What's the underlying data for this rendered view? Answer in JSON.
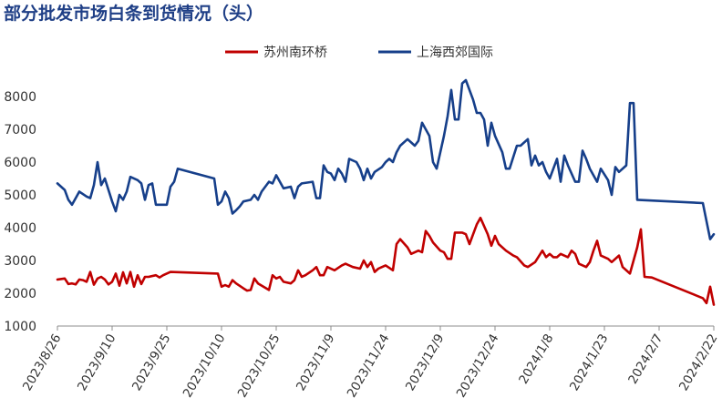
{
  "title": "部分批发市场白条到货情况（头）",
  "chart_data": {
    "type": "line",
    "title": "部分批发市场白条到货情况（头）",
    "xlabel": "",
    "ylabel": "",
    "ylim": [
      1000,
      8500
    ],
    "yticks": [
      1000,
      2000,
      3000,
      4000,
      5000,
      6000,
      7000,
      8000
    ],
    "x_range": [
      "2023-08-26",
      "2024-02-22"
    ],
    "x_tick_labels": [
      "2023/8/26",
      "2023/9/10",
      "2023/9/25",
      "2023/10/10",
      "2023/10/25",
      "2023/11/9",
      "2023/11/24",
      "2023/12/9",
      "2023/12/24",
      "2024/1/8",
      "2024/1/23",
      "2024/2/7",
      "2024/2/22"
    ],
    "x_tick_dates": [
      "2023-08-26",
      "2023-09-10",
      "2023-09-25",
      "2023-10-10",
      "2023-10-25",
      "2023-11-09",
      "2023-11-24",
      "2023-12-09",
      "2023-12-24",
      "2024-01-08",
      "2024-01-23",
      "2024-02-07",
      "2024-02-22"
    ],
    "grid": false,
    "legend_position": "top-right",
    "series": [
      {
        "name": "苏州南环桥",
        "color": "#c00000",
        "points": [
          [
            "2023-08-26",
            2420
          ],
          [
            "2023-08-28",
            2450
          ],
          [
            "2023-08-29",
            2280
          ],
          [
            "2023-08-30",
            2300
          ],
          [
            "2023-08-31",
            2270
          ],
          [
            "2023-09-01",
            2420
          ],
          [
            "2023-09-02",
            2400
          ],
          [
            "2023-09-03",
            2350
          ],
          [
            "2023-09-04",
            2650
          ],
          [
            "2023-09-05",
            2260
          ],
          [
            "2023-09-06",
            2450
          ],
          [
            "2023-09-07",
            2500
          ],
          [
            "2023-09-08",
            2420
          ],
          [
            "2023-09-09",
            2270
          ],
          [
            "2023-09-10",
            2350
          ],
          [
            "2023-09-11",
            2600
          ],
          [
            "2023-09-12",
            2230
          ],
          [
            "2023-09-13",
            2640
          ],
          [
            "2023-09-14",
            2300
          ],
          [
            "2023-09-15",
            2650
          ],
          [
            "2023-09-16",
            2200
          ],
          [
            "2023-09-17",
            2550
          ],
          [
            "2023-09-18",
            2280
          ],
          [
            "2023-09-19",
            2500
          ],
          [
            "2023-09-20",
            2500
          ],
          [
            "2023-09-22",
            2550
          ],
          [
            "2023-09-23",
            2480
          ],
          [
            "2023-09-24",
            2550
          ],
          [
            "2023-09-26",
            2650
          ],
          [
            "2023-10-09",
            2600
          ],
          [
            "2023-10-10",
            2200
          ],
          [
            "2023-10-11",
            2250
          ],
          [
            "2023-10-12",
            2200
          ],
          [
            "2023-10-13",
            2400
          ],
          [
            "2023-10-14",
            2300
          ],
          [
            "2023-10-16",
            2150
          ],
          [
            "2023-10-17",
            2080
          ],
          [
            "2023-10-18",
            2100
          ],
          [
            "2023-10-19",
            2450
          ],
          [
            "2023-10-20",
            2300
          ],
          [
            "2023-10-23",
            2100
          ],
          [
            "2023-10-24",
            2550
          ],
          [
            "2023-10-25",
            2450
          ],
          [
            "2023-10-26",
            2500
          ],
          [
            "2023-10-27",
            2350
          ],
          [
            "2023-10-29",
            2300
          ],
          [
            "2023-10-30",
            2400
          ],
          [
            "2023-10-31",
            2700
          ],
          [
            "2023-11-01",
            2500
          ],
          [
            "2023-11-02",
            2550
          ],
          [
            "2023-11-04",
            2700
          ],
          [
            "2023-11-05",
            2800
          ],
          [
            "2023-11-06",
            2550
          ],
          [
            "2023-11-07",
            2550
          ],
          [
            "2023-11-08",
            2800
          ],
          [
            "2023-11-10",
            2700
          ],
          [
            "2023-11-12",
            2850
          ],
          [
            "2023-11-13",
            2900
          ],
          [
            "2023-11-15",
            2800
          ],
          [
            "2023-11-17",
            2750
          ],
          [
            "2023-11-18",
            3000
          ],
          [
            "2023-11-19",
            2800
          ],
          [
            "2023-11-20",
            2950
          ],
          [
            "2023-11-21",
            2650
          ],
          [
            "2023-11-22",
            2750
          ],
          [
            "2023-11-23",
            2800
          ],
          [
            "2023-11-24",
            2850
          ],
          [
            "2023-11-26",
            2700
          ],
          [
            "2023-11-27",
            3500
          ],
          [
            "2023-11-28",
            3650
          ],
          [
            "2023-11-30",
            3400
          ],
          [
            "2023-12-01",
            3200
          ],
          [
            "2023-12-03",
            3300
          ],
          [
            "2023-12-04",
            3250
          ],
          [
            "2023-12-05",
            3900
          ],
          [
            "2023-12-06",
            3750
          ],
          [
            "2023-12-07",
            3550
          ],
          [
            "2023-12-09",
            3300
          ],
          [
            "2023-12-10",
            3250
          ],
          [
            "2023-12-11",
            3050
          ],
          [
            "2023-12-12",
            3050
          ],
          [
            "2023-12-13",
            3850
          ],
          [
            "2023-12-15",
            3850
          ],
          [
            "2023-12-16",
            3800
          ],
          [
            "2023-12-17",
            3500
          ],
          [
            "2023-12-18",
            3800
          ],
          [
            "2023-12-19",
            4100
          ],
          [
            "2023-12-20",
            4300
          ],
          [
            "2023-12-22",
            3800
          ],
          [
            "2023-12-23",
            3450
          ],
          [
            "2023-12-24",
            3750
          ],
          [
            "2023-12-25",
            3500
          ],
          [
            "2023-12-27",
            3300
          ],
          [
            "2023-12-29",
            3150
          ],
          [
            "2023-12-30",
            3100
          ],
          [
            "2024-01-01",
            2850
          ],
          [
            "2024-01-02",
            2800
          ],
          [
            "2024-01-04",
            2950
          ],
          [
            "2024-01-06",
            3300
          ],
          [
            "2024-01-07",
            3100
          ],
          [
            "2024-01-08",
            3200
          ],
          [
            "2024-01-09",
            3100
          ],
          [
            "2024-01-10",
            3100
          ],
          [
            "2024-01-11",
            3200
          ],
          [
            "2024-01-13",
            3100
          ],
          [
            "2024-01-14",
            3300
          ],
          [
            "2024-01-15",
            3200
          ],
          [
            "2024-01-16",
            2900
          ],
          [
            "2024-01-18",
            2800
          ],
          [
            "2024-01-19",
            2950
          ],
          [
            "2024-01-20",
            3300
          ],
          [
            "2024-01-21",
            3600
          ],
          [
            "2024-01-22",
            3150
          ],
          [
            "2024-01-24",
            3050
          ],
          [
            "2024-01-25",
            2950
          ],
          [
            "2024-01-27",
            3150
          ],
          [
            "2024-01-28",
            2800
          ],
          [
            "2024-01-30",
            2600
          ],
          [
            "2024-02-01",
            3400
          ],
          [
            "2024-02-02",
            3950
          ],
          [
            "2024-02-03",
            2500
          ],
          [
            "2024-02-05",
            2480
          ],
          [
            "2024-02-19",
            1850
          ],
          [
            "2024-02-20",
            1700
          ],
          [
            "2024-02-21",
            2200
          ],
          [
            "2024-02-22",
            1650
          ]
        ]
      },
      {
        "name": "上海西郊国际",
        "color": "#163f8a",
        "points": [
          [
            "2023-08-26",
            5350
          ],
          [
            "2023-08-28",
            5150
          ],
          [
            "2023-08-29",
            4850
          ],
          [
            "2023-08-30",
            4700
          ],
          [
            "2023-08-31",
            4900
          ],
          [
            "2023-09-01",
            5100
          ],
          [
            "2023-09-03",
            4950
          ],
          [
            "2023-09-04",
            4900
          ],
          [
            "2023-09-05",
            5300
          ],
          [
            "2023-09-06",
            6000
          ],
          [
            "2023-09-07",
            5300
          ],
          [
            "2023-09-08",
            5500
          ],
          [
            "2023-09-09",
            5150
          ],
          [
            "2023-09-10",
            4800
          ],
          [
            "2023-09-11",
            4500
          ],
          [
            "2023-09-12",
            5000
          ],
          [
            "2023-09-13",
            4850
          ],
          [
            "2023-09-14",
            5100
          ],
          [
            "2023-09-15",
            5550
          ],
          [
            "2023-09-17",
            5450
          ],
          [
            "2023-09-18",
            5350
          ],
          [
            "2023-09-19",
            4850
          ],
          [
            "2023-09-20",
            5300
          ],
          [
            "2023-09-21",
            5350
          ],
          [
            "2023-09-22",
            4700
          ],
          [
            "2023-09-24",
            4700
          ],
          [
            "2023-09-25",
            4700
          ],
          [
            "2023-09-26",
            5250
          ],
          [
            "2023-09-27",
            5400
          ],
          [
            "2023-09-28",
            5800
          ],
          [
            "2023-10-08",
            5500
          ],
          [
            "2023-10-09",
            4700
          ],
          [
            "2023-10-10",
            4800
          ],
          [
            "2023-10-11",
            5100
          ],
          [
            "2023-10-12",
            4900
          ],
          [
            "2023-10-13",
            4430
          ],
          [
            "2023-10-14",
            4530
          ],
          [
            "2023-10-15",
            4650
          ],
          [
            "2023-10-16",
            4800
          ],
          [
            "2023-10-18",
            4850
          ],
          [
            "2023-10-19",
            5000
          ],
          [
            "2023-10-20",
            4850
          ],
          [
            "2023-10-21",
            5100
          ],
          [
            "2023-10-23",
            5400
          ],
          [
            "2023-10-24",
            5350
          ],
          [
            "2023-10-25",
            5600
          ],
          [
            "2023-10-27",
            5200
          ],
          [
            "2023-10-29",
            5250
          ],
          [
            "2023-10-30",
            4900
          ],
          [
            "2023-10-31",
            5250
          ],
          [
            "2023-11-01",
            5350
          ],
          [
            "2023-11-04",
            5400
          ],
          [
            "2023-11-05",
            4900
          ],
          [
            "2023-11-06",
            4900
          ],
          [
            "2023-11-07",
            5900
          ],
          [
            "2023-11-08",
            5700
          ],
          [
            "2023-11-09",
            5650
          ],
          [
            "2023-11-10",
            5450
          ],
          [
            "2023-11-11",
            5800
          ],
          [
            "2023-11-12",
            5650
          ],
          [
            "2023-11-13",
            5400
          ],
          [
            "2023-11-14",
            6100
          ],
          [
            "2023-11-16",
            6000
          ],
          [
            "2023-11-17",
            5800
          ],
          [
            "2023-11-18",
            5450
          ],
          [
            "2023-11-19",
            5800
          ],
          [
            "2023-11-20",
            5500
          ],
          [
            "2023-11-21",
            5700
          ],
          [
            "2023-11-23",
            5850
          ],
          [
            "2023-11-24",
            6000
          ],
          [
            "2023-11-25",
            6100
          ],
          [
            "2023-11-26",
            6000
          ],
          [
            "2023-11-27",
            6300
          ],
          [
            "2023-11-28",
            6500
          ],
          [
            "2023-11-30",
            6700
          ],
          [
            "2023-12-01",
            6600
          ],
          [
            "2023-12-02",
            6500
          ],
          [
            "2023-12-03",
            6650
          ],
          [
            "2023-12-04",
            7200
          ],
          [
            "2023-12-06",
            6800
          ],
          [
            "2023-12-07",
            6000
          ],
          [
            "2023-12-08",
            5800
          ],
          [
            "2023-12-10",
            6800
          ],
          [
            "2023-12-11",
            7400
          ],
          [
            "2023-12-12",
            8200
          ],
          [
            "2023-12-13",
            7300
          ],
          [
            "2023-12-14",
            7300
          ],
          [
            "2023-12-15",
            8400
          ],
          [
            "2023-12-16",
            8500
          ],
          [
            "2023-12-17",
            8200
          ],
          [
            "2023-12-18",
            7900
          ],
          [
            "2023-12-19",
            7500
          ],
          [
            "2023-12-20",
            7500
          ],
          [
            "2023-12-21",
            7300
          ],
          [
            "2023-12-22",
            6500
          ],
          [
            "2023-12-23",
            7200
          ],
          [
            "2023-12-24",
            6800
          ],
          [
            "2023-12-26",
            6300
          ],
          [
            "2023-12-27",
            5800
          ],
          [
            "2023-12-28",
            5800
          ],
          [
            "2023-12-30",
            6500
          ],
          [
            "2023-12-31",
            6500
          ],
          [
            "2024-01-02",
            6700
          ],
          [
            "2024-01-03",
            5900
          ],
          [
            "2024-01-04",
            6200
          ],
          [
            "2024-01-05",
            5900
          ],
          [
            "2024-01-06",
            6000
          ],
          [
            "2024-01-07",
            5700
          ],
          [
            "2024-01-08",
            5500
          ],
          [
            "2024-01-10",
            6100
          ],
          [
            "2024-01-11",
            5400
          ],
          [
            "2024-01-12",
            6200
          ],
          [
            "2024-01-13",
            5900
          ],
          [
            "2024-01-15",
            5400
          ],
          [
            "2024-01-16",
            5400
          ],
          [
            "2024-01-17",
            6350
          ],
          [
            "2024-01-18",
            6100
          ],
          [
            "2024-01-19",
            5800
          ],
          [
            "2024-01-21",
            5400
          ],
          [
            "2024-01-22",
            5800
          ],
          [
            "2024-01-24",
            5450
          ],
          [
            "2024-01-25",
            5000
          ],
          [
            "2024-01-26",
            5850
          ],
          [
            "2024-01-27",
            5700
          ],
          [
            "2024-01-29",
            5900
          ],
          [
            "2024-01-30",
            7800
          ],
          [
            "2024-01-31",
            7800
          ],
          [
            "2024-02-01",
            4850
          ],
          [
            "2024-02-19",
            4750
          ],
          [
            "2024-02-21",
            3650
          ],
          [
            "2024-02-22",
            3800
          ]
        ]
      }
    ]
  }
}
